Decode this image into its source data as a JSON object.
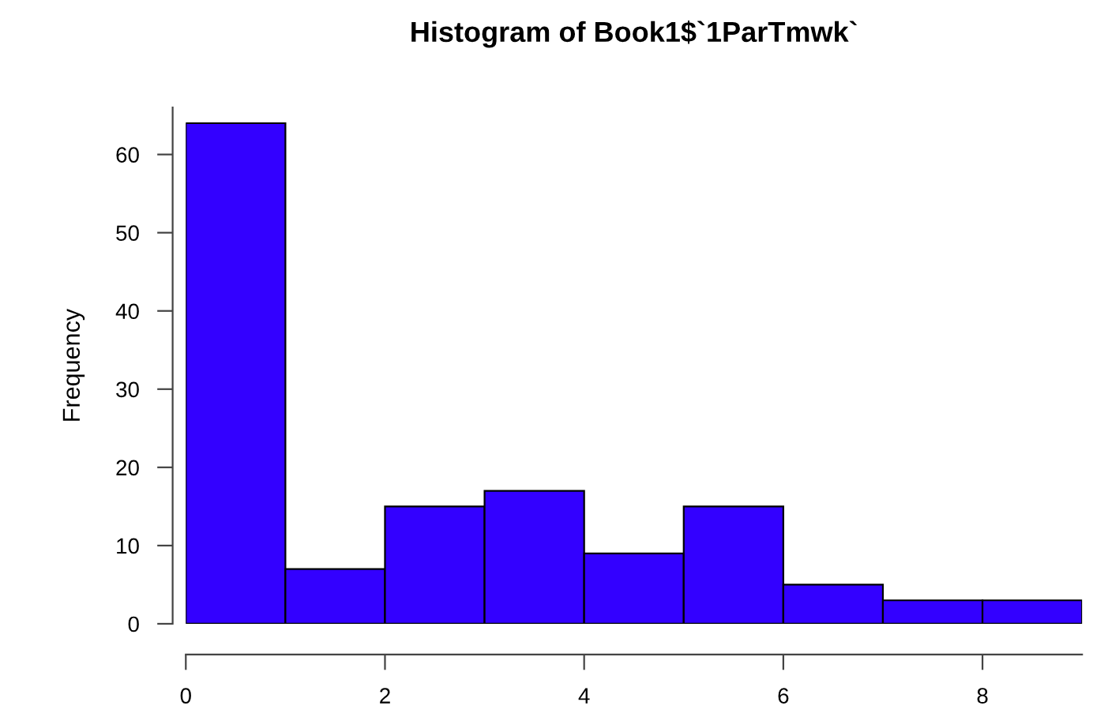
{
  "chart_data": {
    "type": "histogram",
    "title": "Histogram of Book1$`1ParTmwk`",
    "ylabel": "Frequency",
    "bins": [
      0,
      1,
      2,
      3,
      4,
      5,
      6,
      7,
      8,
      9
    ],
    "values": [
      64,
      7,
      15,
      17,
      9,
      15,
      5,
      3,
      3
    ],
    "color": "#3300ff",
    "xlim": [
      0,
      9
    ],
    "ylim": [
      0,
      66
    ],
    "xticks": [
      0,
      2,
      4,
      6,
      8
    ],
    "yticks": [
      0,
      10,
      20,
      30,
      40,
      50,
      60
    ],
    "grid": false
  }
}
